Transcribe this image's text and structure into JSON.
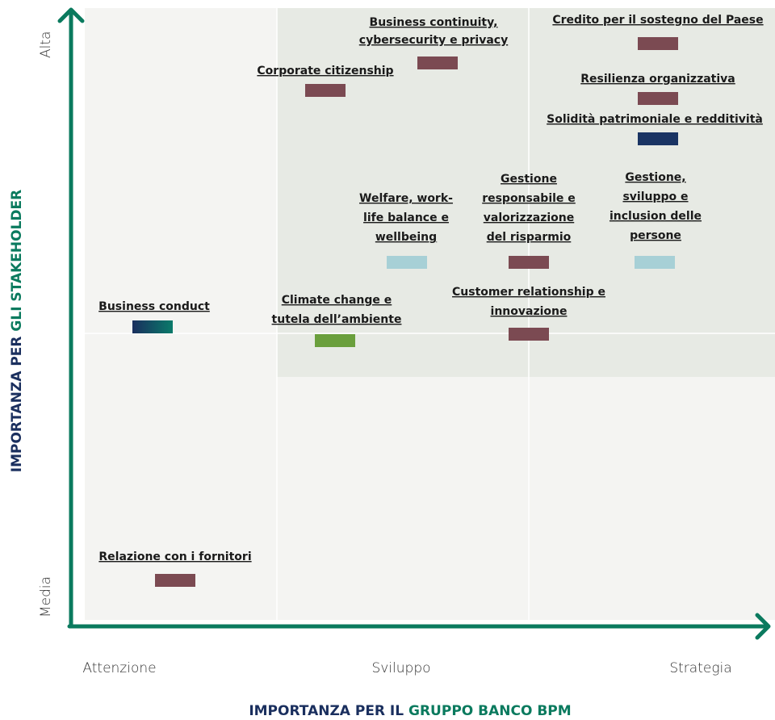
{
  "title_y": [
    "IMPORTANZA PER ",
    "GLI STAKEHOLDER"
  ],
  "title_x": [
    "IMPORTANZA PER IL ",
    "GRUPPO BANCO BPM"
  ],
  "y_levels": [
    "Media",
    "Alta"
  ],
  "x_levels": [
    "Attenzione",
    "Sviluppo",
    "Strategia"
  ],
  "items": [
    {
      "label": [
        "Business continuity,",
        "cybersecurity e privacy"
      ],
      "color": "#7b4a52"
    },
    {
      "label": [
        "Credito per il sostegno del Paese"
      ],
      "color": "#7b4a52"
    },
    {
      "label": [
        "Corporate citizenship"
      ],
      "color": "#7b4a52"
    },
    {
      "label": [
        "Resilienza organizzativa"
      ],
      "color": "#7b4a52"
    },
    {
      "label": [
        "Solidità patrimoniale e redditività"
      ],
      "color": "#1a3463"
    },
    {
      "label": [
        "Welfare, work-",
        "life balance e",
        "wellbeing"
      ],
      "color": "#a7d0d6"
    },
    {
      "label": [
        "Gestione",
        "responsabile e",
        "valorizzazione",
        "del risparmio"
      ],
      "color": "#7b4a52"
    },
    {
      "label": [
        "Gestione,",
        "sviluppo e",
        "inclusion delle",
        "persone"
      ],
      "color": "#a7d0d6"
    },
    {
      "label": [
        "Business conduct"
      ],
      "color": [
        "#1a2f5e",
        "#0a7a6a"
      ]
    },
    {
      "label": [
        "Climate change e",
        "tutela dell’ambiente"
      ],
      "color": "#6a9f3c"
    },
    {
      "label": [
        "Customer relationship e",
        "innovazione"
      ],
      "color": "#7b4a52"
    },
    {
      "label": [
        "Relazione con i fornitori"
      ],
      "color": "#7b4a52"
    }
  ]
}
